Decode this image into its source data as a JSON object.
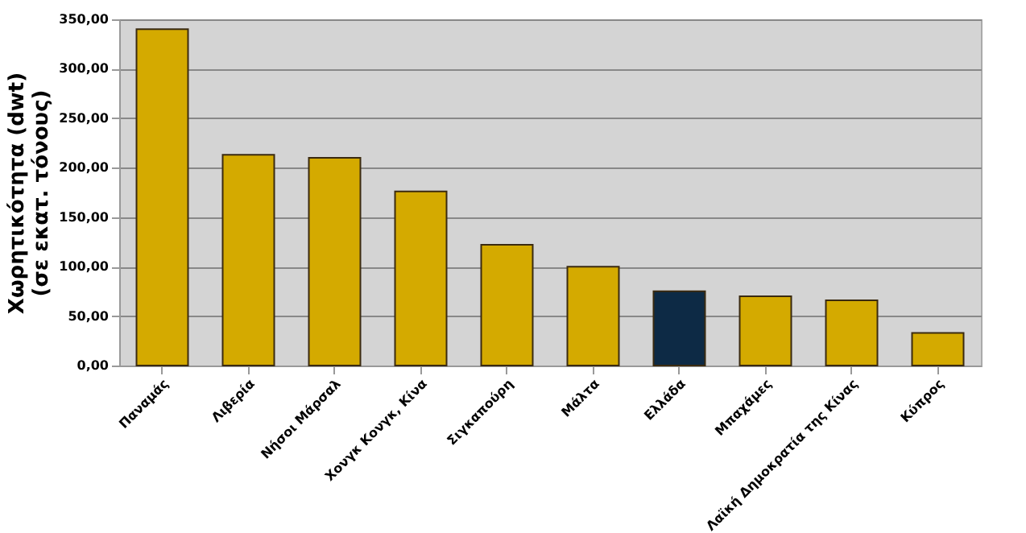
{
  "chart_data": {
    "type": "bar",
    "ylabel": "Χωρητικότητα (dwt)\n(σε εκατ. τόνους)",
    "categories": [
      "Παναμάς",
      "Λιβερία",
      "Νήσοι Μάρσαλ",
      "Χονγκ Κονγκ, Κίνα",
      "Σιγκαπούρη",
      "Μάλτα",
      "Ελλάδα",
      "Μπαχάμες",
      "Λαϊκή Δημοκρατία της Κίνας",
      "Κύπρος"
    ],
    "values": [
      340,
      213,
      210,
      176,
      122,
      100,
      75,
      70,
      66,
      33
    ],
    "colors": [
      "#d4aa00",
      "#d4aa00",
      "#d4aa00",
      "#d4aa00",
      "#d4aa00",
      "#d4aa00",
      "#0d2a45",
      "#d4aa00",
      "#d4aa00",
      "#d4aa00"
    ],
    "ylim": [
      0,
      350
    ],
    "yticks": [
      {
        "value": 0,
        "label": "0,00"
      },
      {
        "value": 50,
        "label": "50,00"
      },
      {
        "value": 100,
        "label": "100,00"
      },
      {
        "value": 150,
        "label": "150,00"
      },
      {
        "value": 200,
        "label": "200,00"
      },
      {
        "value": 250,
        "label": "250,00"
      },
      {
        "value": 300,
        "label": "300,00"
      },
      {
        "value": 350,
        "label": "350,00"
      }
    ],
    "grid": "y"
  }
}
